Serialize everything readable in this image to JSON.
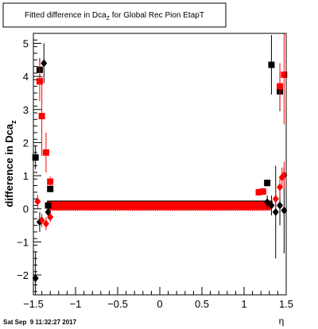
{
  "chart_data": {
    "type": "scatter",
    "title": "Fitted difference in Dca",
    "title_sub": "Z",
    "title_rest": " for Global Rec Pion EtapT",
    "xlabel": "η",
    "ylabel": "difference in Dca",
    "ylabel_sub": "z",
    "timestamp": "Sat Sep  9 11:32:27 2017",
    "xlim": [
      -1.5,
      1.5
    ],
    "ylim": [
      -2.6,
      5.3
    ],
    "x_ticks": [
      -1.5,
      -1.0,
      -0.5,
      0,
      0.5,
      1.0,
      1.5
    ],
    "x_tick_labels": [
      "−1.5",
      "−1",
      "−0.5",
      "0",
      "0.5",
      "1",
      "1.5"
    ],
    "y_ticks": [
      -2,
      -1,
      0,
      1,
      2,
      3,
      4,
      5
    ],
    "y_tick_labels": [
      "−2",
      "−1",
      "0",
      "1",
      "2",
      "3",
      "4",
      "5"
    ],
    "grid": false,
    "series": [
      {
        "marker": "square",
        "color": "#000000",
        "points": [
          {
            "x": -1.475,
            "y": 1.55,
            "err": 0.35
          },
          {
            "x": -1.425,
            "y": 4.2,
            "err": 0.35
          },
          {
            "x": -1.325,
            "y": 0.1,
            "err": 0.1
          },
          {
            "x": -1.3,
            "y": 0.6,
            "err": 0.1
          },
          {
            "x": 1.325,
            "y": 4.35,
            "err": 0.9
          },
          {
            "x": 1.425,
            "y": 3.55,
            "err": 0.6
          },
          {
            "x": 1.275,
            "y": 0.78,
            "err": 0.1
          }
        ]
      },
      {
        "marker": "square",
        "color": "#ff0000",
        "points": [
          {
            "x": -1.425,
            "y": 3.85,
            "err": 0.6
          },
          {
            "x": -1.4,
            "y": 2.8,
            "err": 1.2
          },
          {
            "x": -1.35,
            "y": 1.7,
            "err": 0.6
          },
          {
            "x": -1.3,
            "y": 0.82,
            "err": 0.15
          },
          {
            "x": 1.175,
            "y": 0.5,
            "err": 0.1
          },
          {
            "x": 1.225,
            "y": 0.52,
            "err": 0.1
          },
          {
            "x": 1.425,
            "y": 3.7,
            "err": 0.7
          },
          {
            "x": 1.475,
            "y": 4.05,
            "err": 1.5
          }
        ]
      },
      {
        "marker": "diamond",
        "color": "#000000",
        "points": [
          {
            "x": -1.475,
            "y": -2.1,
            "err": 0.8
          },
          {
            "x": -1.425,
            "y": -0.4,
            "err": 0.3
          },
          {
            "x": -1.375,
            "y": 4.4,
            "err": 0.6
          },
          {
            "x": -1.325,
            "y": -0.1,
            "err": 0.2
          },
          {
            "x": 1.275,
            "y": 0.2,
            "err": 0.2
          },
          {
            "x": 1.325,
            "y": 0.1,
            "err": 0.3
          },
          {
            "x": 1.375,
            "y": -0.1,
            "err": 1.4
          },
          {
            "x": 1.425,
            "y": 0.1,
            "err": 0.6
          },
          {
            "x": 1.475,
            "y": -0.05,
            "err": 1.3
          }
        ]
      },
      {
        "marker": "diamond",
        "color": "#ff0000",
        "points": [
          {
            "x": -1.45,
            "y": 0.22,
            "err": 0.2
          },
          {
            "x": -1.4,
            "y": -0.35,
            "err": 0.2
          },
          {
            "x": -1.35,
            "y": -0.45,
            "err": 0.2
          },
          {
            "x": -1.3,
            "y": -0.25,
            "err": 0.15
          },
          {
            "x": 1.375,
            "y": 0.3,
            "err": 0.3
          },
          {
            "x": 1.425,
            "y": 0.65,
            "err": 0.3
          },
          {
            "x": 1.45,
            "y": 0.95,
            "err": 0.3
          },
          {
            "x": 1.475,
            "y": 1.02,
            "err": 0.4
          }
        ]
      }
    ],
    "central_band": {
      "x_from": -1.3,
      "x_to": 1.3,
      "step": 0.025,
      "black_square_y": 0.15,
      "red_square_y": 0.12,
      "black_diamond_y": 0.08,
      "red_diamond_y": 0.05
    }
  }
}
